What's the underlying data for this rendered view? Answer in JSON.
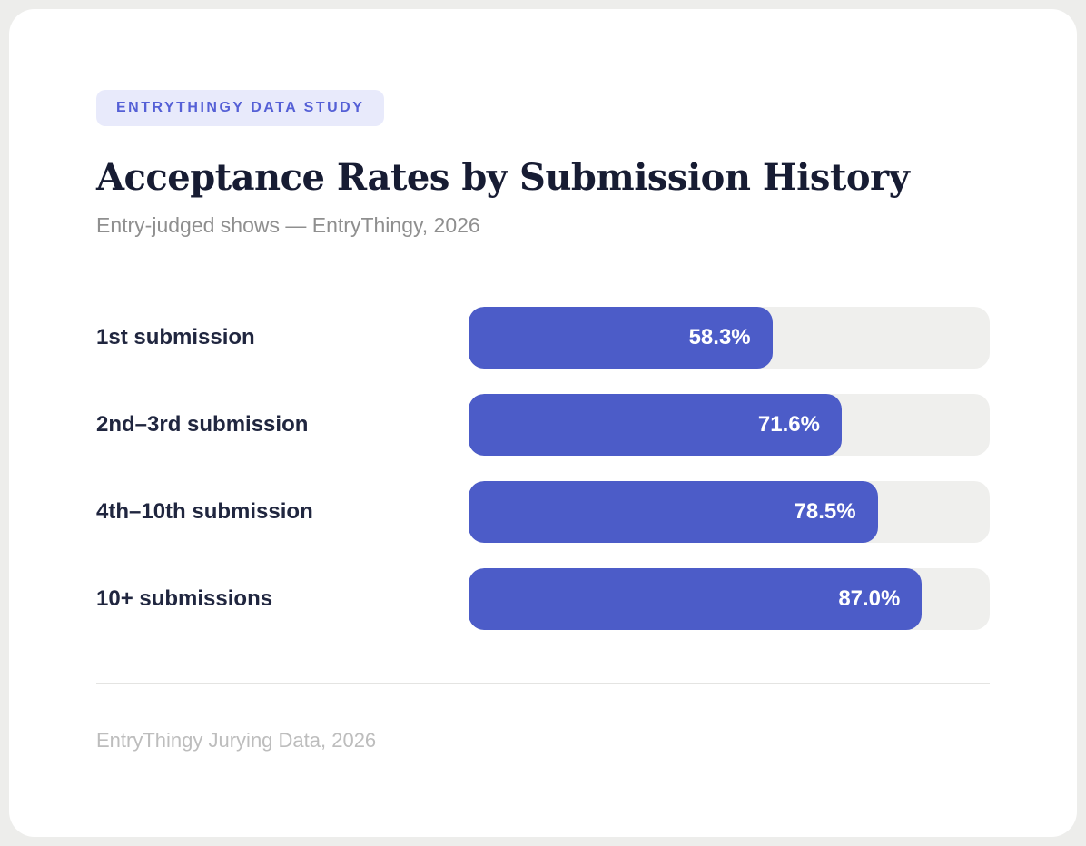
{
  "badge": {
    "label": "ENTRYTHINGY DATA STUDY"
  },
  "header": {
    "title": "Acceptance Rates by Submission History",
    "subtitle": "Entry-judged shows — EntryThingy, 2026"
  },
  "footer": {
    "source": "EntryThingy Jurying Data, 2026"
  },
  "colors": {
    "page_bg": "#EDEDEB",
    "card_bg": "#FFFFFF",
    "bar_fill": "#4C5CC8",
    "bar_track": "#EFEFED",
    "badge_bg": "#E8EAFB",
    "badge_text": "#5560D6",
    "title_text": "#171C33",
    "label_text": "#20263F",
    "subtitle_text": "#8F8F8F",
    "footer_text": "#BDBDBD"
  },
  "chart_data": {
    "type": "bar",
    "orientation": "horizontal",
    "title": "Acceptance Rates by Submission History",
    "subtitle": "Entry-judged shows — EntryThingy, 2026",
    "source": "EntryThingy Jurying Data, 2026",
    "categories": [
      "1st submission",
      "2nd–3rd submission",
      "4th–10th submission",
      "10+ submissions"
    ],
    "values": [
      58.3,
      71.6,
      78.5,
      87.0
    ],
    "value_labels": [
      "58.3%",
      "71.6%",
      "78.5%",
      "87.0%"
    ],
    "unit": "%",
    "xlim": [
      0,
      100
    ],
    "grid": false,
    "legend": false,
    "value_label_position": "inside-end"
  }
}
